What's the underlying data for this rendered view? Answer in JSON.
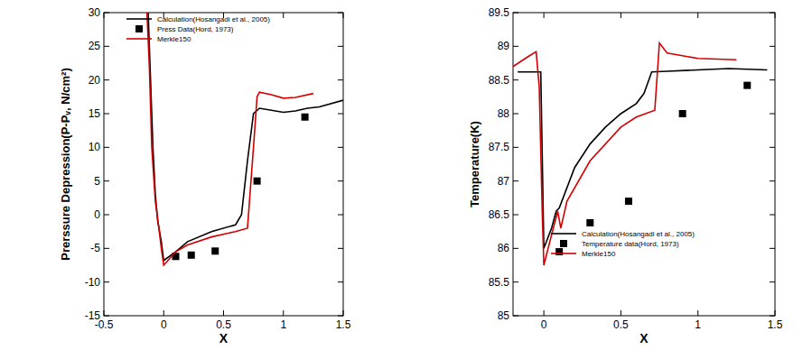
{
  "chart_data": [
    {
      "type": "line",
      "xlabel": "X",
      "ylabel": "Prerssure Depression(P-Pᵥ, N/cm²)",
      "xlim": [
        -0.5,
        1.5
      ],
      "xticks": [
        -0.5,
        0,
        0.5,
        1,
        1.5
      ],
      "ylim": [
        -15,
        30
      ],
      "yticks": [
        -15,
        -10,
        -5,
        0,
        5,
        10,
        15,
        20,
        25,
        30
      ],
      "legend": "upper left",
      "series": [
        {
          "name": "Calculation(Hosangadi et al., 2005)",
          "color": "#000000",
          "type": "line",
          "line_style": "solid",
          "x": [
            -0.13,
            -0.11,
            -0.09,
            -0.07,
            -0.05,
            -0.02,
            0,
            0.1,
            0.2,
            0.4,
            0.6,
            0.65,
            0.7,
            0.75,
            0.8,
            0.9,
            1.0,
            1.1,
            1.2,
            1.3,
            1.5
          ],
          "values": [
            30,
            20,
            10,
            3,
            -1,
            -4,
            -6.8,
            -5.5,
            -4,
            -2.5,
            -1.5,
            0,
            8,
            15,
            15.8,
            15.5,
            15.2,
            15.4,
            15.8,
            16,
            17
          ]
        },
        {
          "name": "Press Data(Hord, 1973)",
          "color": "#000000",
          "type": "scatter",
          "marker": "square",
          "x": [
            0.1,
            0.23,
            0.43,
            0.78,
            1.18
          ],
          "values": [
            -6.2,
            -6,
            -5.4,
            5,
            14.5
          ]
        },
        {
          "name": "Merkle150",
          "color": "#d40000",
          "type": "line",
          "line_style": "solid",
          "x": [
            -0.14,
            -0.12,
            -0.1,
            -0.07,
            -0.04,
            -0.02,
            0,
            0.05,
            0.1,
            0.2,
            0.4,
            0.6,
            0.7,
            0.75,
            0.78,
            0.8,
            0.9,
            1.0,
            1.1,
            1.25
          ],
          "values": [
            30,
            22,
            10,
            2,
            -2,
            -5,
            -7.5,
            -6.5,
            -5.5,
            -4.5,
            -3.3,
            -2.5,
            -2,
            10,
            17.5,
            18.2,
            17.8,
            17.3,
            17.4,
            18
          ]
        }
      ]
    },
    {
      "type": "line",
      "xlabel": "X",
      "ylabel": "Temperature(K)",
      "xlim": [
        -0.2,
        1.5
      ],
      "xticks": [
        0,
        0.5,
        1,
        1.5
      ],
      "ylim": [
        85,
        89.5
      ],
      "yticks": [
        85,
        85.5,
        86,
        86.5,
        87,
        87.5,
        88,
        88.5,
        89,
        89.5
      ],
      "legend": "lower right",
      "series": [
        {
          "name": "Calculation(Hosangadi et al., 2005)",
          "color": "#000000",
          "type": "line",
          "line_style": "solid",
          "x": [
            -0.17,
            -0.02,
            0,
            0.05,
            0.08,
            0.1,
            0.2,
            0.3,
            0.4,
            0.5,
            0.6,
            0.65,
            0.7,
            0.8,
            1.0,
            1.2,
            1.45
          ],
          "values": [
            88.62,
            88.62,
            86.0,
            86.3,
            86.55,
            86.6,
            87.2,
            87.55,
            87.8,
            88.0,
            88.15,
            88.3,
            88.62,
            88.63,
            88.65,
            88.67,
            88.65
          ]
        },
        {
          "name": "Temperature data(Hord, 1973)",
          "color": "#000000",
          "type": "scatter",
          "marker": "square",
          "x": [
            0.1,
            0.3,
            0.55,
            0.9,
            1.32
          ],
          "values": [
            85.95,
            86.38,
            86.7,
            88.0,
            88.42
          ]
        },
        {
          "name": "Merkle150",
          "color": "#d40000",
          "type": "line",
          "line_style": "solid",
          "x": [
            -0.2,
            -0.1,
            -0.05,
            -0.03,
            -0.01,
            0,
            0.05,
            0.09,
            0.11,
            0.15,
            0.3,
            0.5,
            0.6,
            0.72,
            0.75,
            0.8,
            1.0,
            1.25
          ],
          "values": [
            88.7,
            88.85,
            88.92,
            88.4,
            86.5,
            85.75,
            86.2,
            86.55,
            86.3,
            86.7,
            87.3,
            87.8,
            87.95,
            88.05,
            89.05,
            88.9,
            88.82,
            88.8
          ]
        }
      ]
    }
  ]
}
